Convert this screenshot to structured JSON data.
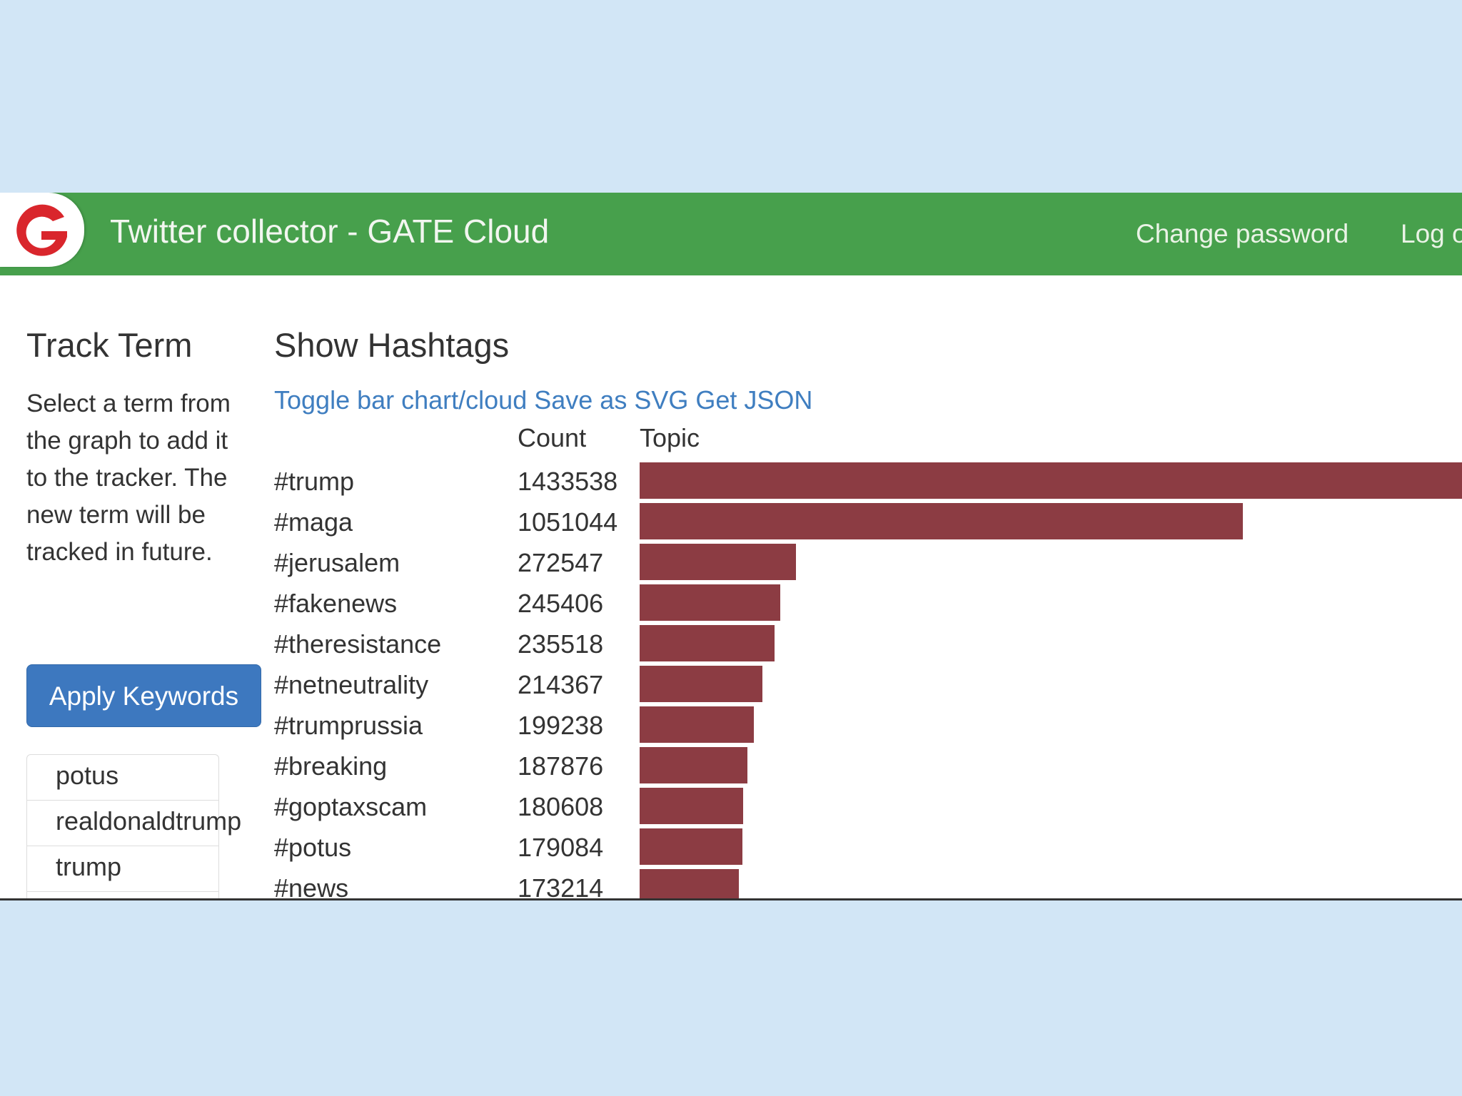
{
  "navbar": {
    "title": "Twitter collector - GATE Cloud",
    "links": [
      "Change password",
      "Log out"
    ],
    "color": "#47a04c"
  },
  "left_panel": {
    "title": "Track Term",
    "description": "Select a term from the graph to add it to the tracker. The new term will be tracked in future.",
    "apply_button": "Apply Keywords",
    "keywords": [
      "potus",
      "realdonaldtrump",
      "trump"
    ]
  },
  "right_panel": {
    "title": "Show Hashtags",
    "links": [
      "Toggle bar chart/cloud",
      "Save as SVG",
      "Get JSON"
    ],
    "columns": {
      "count": "Count",
      "topic": "Topic"
    }
  },
  "chart_data": {
    "type": "bar",
    "orientation": "horizontal",
    "categories": [
      "#trump",
      "#maga",
      "#jerusalem",
      "#fakenews",
      "#theresistance",
      "#netneutrality",
      "#trumprussia",
      "#breaking",
      "#goptaxscam",
      "#potus",
      "#news"
    ],
    "values": [
      1433538,
      1051044,
      272547,
      245406,
      235518,
      214367,
      199238,
      187876,
      180608,
      179084,
      173214
    ],
    "bar_color": "#8c3c43",
    "xlim": [
      0,
      1433538
    ]
  }
}
